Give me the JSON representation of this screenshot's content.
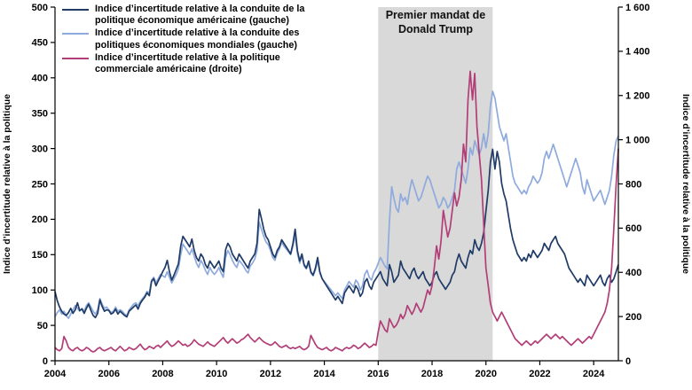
{
  "chart_data": {
    "type": "line",
    "title": "",
    "x_start_year": 2004,
    "points_per_year": 12,
    "x_ticks": [
      "2004",
      "2006",
      "2008",
      "2010",
      "2012",
      "2014",
      "2016",
      "2018",
      "2020",
      "2022",
      "2024"
    ],
    "left_axis": {
      "label": "Indice d’incertitude relative à la politique",
      "min": 0,
      "max": 500,
      "ticks": [
        "0",
        "50",
        "100",
        "150",
        "200",
        "250",
        "300",
        "350",
        "400",
        "450",
        "500"
      ]
    },
    "right_axis": {
      "label": "Indice d’incertitude relative à la politique",
      "min": 0,
      "max": 1600,
      "ticks": [
        "0",
        "200",
        "400",
        "600",
        "800",
        "1 000",
        "1 200",
        "1 400",
        "1 600"
      ]
    },
    "shaded_region": {
      "start_year": 2016.0,
      "end_year": 2020.25,
      "color": "#d9d9d9",
      "label": "Premier mandat de Donald Trump"
    },
    "series": [
      {
        "name": "Indice d’incertitude relative à la conduite de la politique économique américaine (gauche)",
        "axis": "left",
        "color": "#1f3b66",
        "values": [
          98,
          85,
          76,
          70,
          66,
          64,
          68,
          74,
          67,
          72,
          82,
          71,
          73,
          67,
          74,
          80,
          71,
          64,
          61,
          67,
          86,
          77,
          70,
          72,
          71,
          66,
          68,
          73,
          66,
          70,
          67,
          64,
          62,
          70,
          73,
          76,
          79,
          73,
          81,
          86,
          90,
          96,
          92,
          112,
          116,
          106,
          113,
          119,
          126,
          132,
          142,
          126,
          114,
          121,
          129,
          137,
          162,
          176,
          171,
          166,
          161,
          172,
          156,
          146,
          141,
          151,
          146,
          136,
          131,
          141,
          136,
          131,
          136,
          141,
          131,
          126,
          157,
          166,
          161,
          151,
          146,
          141,
          151,
          146,
          141,
          136,
          131,
          141,
          146,
          151,
          166,
          214,
          201,
          186,
          176,
          171,
          161,
          151,
          146,
          156,
          161,
          171,
          166,
          161,
          156,
          151,
          166,
          186,
          156,
          141,
          151,
          136,
          131,
          141,
          126,
          121,
          131,
          146,
          126,
          116,
          111,
          106,
          101,
          96,
          91,
          86,
          91,
          86,
          81,
          96,
          101,
          106,
          101,
          96,
          106,
          101,
          91,
          96,
          111,
          116,
          106,
          101,
          111,
          116,
          121,
          126,
          116,
          111,
          106,
          136,
          126,
          111,
          116,
          121,
          141,
          131,
          126,
          121,
          116,
          126,
          131,
          121,
          116,
          121,
          126,
          116,
          111,
          106,
          111,
          121,
          126,
          116,
          111,
          106,
          101,
          106,
          111,
          121,
          126,
          141,
          151,
          141,
          136,
          131,
          146,
          156,
          151,
          171,
          161,
          156,
          166,
          181,
          211,
          241,
          281,
          299,
          271,
          296,
          281,
          251,
          236,
          226,
          206,
          186,
          171,
          161,
          151,
          146,
          141,
          146,
          141,
          151,
          146,
          156,
          151,
          146,
          151,
          156,
          166,
          161,
          156,
          166,
          171,
          176,
          166,
          161,
          156,
          151,
          141,
          131,
          126,
          121,
          116,
          111,
          116,
          111,
          106,
          121,
          116,
          111,
          106,
          111,
          116,
          121,
          111,
          106,
          116,
          121,
          111,
          116,
          126,
          136
        ]
      },
      {
        "name": "Indice d’incertitude relative à la conduite des politiques économiques mondiales (gauche)",
        "axis": "left",
        "color": "#8faadc",
        "values": [
          62,
          68,
          72,
          66,
          70,
          64,
          60,
          66,
          72,
          78,
          74,
          70,
          74,
          70,
          78,
          82,
          76,
          70,
          66,
          72,
          88,
          80,
          74,
          76,
          72,
          68,
          70,
          76,
          70,
          72,
          70,
          66,
          64,
          72,
          76,
          80,
          82,
          78,
          84,
          88,
          92,
          98,
          96,
          114,
          118,
          110,
          116,
          122,
          120,
          118,
          126,
          118,
          110,
          116,
          122,
          130,
          150,
          165,
          160,
          155,
          150,
          158,
          148,
          138,
          132,
          142,
          136,
          128,
          122,
          132,
          126,
          122,
          126,
          132,
          124,
          118,
          146,
          156,
          150,
          142,
          136,
          132,
          142,
          138,
          134,
          128,
          124,
          134,
          138,
          144,
          156,
          196,
          186,
          176,
          168,
          164,
          156,
          146,
          142,
          152,
          158,
          168,
          162,
          158,
          154,
          150,
          162,
          178,
          152,
          138,
          148,
          134,
          130,
          138,
          124,
          120,
          128,
          142,
          124,
          116,
          112,
          108,
          104,
          100,
          96,
          92,
          96,
          92,
          88,
          100,
          106,
          112,
          108,
          104,
          114,
          110,
          100,
          106,
          122,
          128,
          118,
          114,
          124,
          130,
          138,
          146,
          140,
          134,
          130,
          198,
          246,
          230,
          216,
          210,
          236,
          226,
          231,
          221,
          241,
          256,
          246,
          236,
          226,
          231,
          241,
          251,
          261,
          256,
          246,
          236,
          226,
          216,
          221,
          231,
          226,
          216,
          221,
          231,
          241,
          271,
          281,
          271,
          261,
          251,
          271,
          301,
          291,
          311,
          301,
          291,
          301,
          321,
          301,
          321,
          361,
          381,
          371,
          351,
          331,
          321,
          311,
          321,
          301,
          281,
          261,
          251,
          246,
          241,
          236,
          241,
          236,
          246,
          251,
          261,
          256,
          251,
          256,
          266,
          286,
          296,
          286,
          296,
          306,
          296,
          286,
          276,
          266,
          256,
          246,
          256,
          266,
          276,
          286,
          276,
          266,
          246,
          236,
          256,
          246,
          236,
          226,
          231,
          236,
          241,
          231,
          221,
          231,
          241,
          261,
          291,
          311,
          318
        ]
      },
      {
        "name": "Indice d’incertitude relative à la politique commerciale américaine (droite)",
        "axis": "right",
        "color": "#b23e77",
        "values": [
          60,
          50,
          45,
          55,
          110,
          90,
          60,
          50,
          45,
          55,
          60,
          50,
          45,
          50,
          60,
          55,
          45,
          40,
          45,
          55,
          60,
          50,
          45,
          50,
          55,
          60,
          50,
          45,
          55,
          65,
          55,
          45,
          50,
          60,
          55,
          50,
          55,
          65,
          75,
          60,
          50,
          55,
          65,
          60,
          55,
          65,
          70,
          60,
          70,
          80,
          90,
          75,
          65,
          70,
          80,
          90,
          80,
          70,
          75,
          65,
          70,
          80,
          95,
          85,
          75,
          70,
          65,
          75,
          85,
          75,
          70,
          65,
          75,
          85,
          95,
          105,
          90,
          80,
          90,
          100,
          90,
          80,
          85,
          95,
          100,
          110,
          120,
          105,
          95,
          85,
          95,
          105,
          95,
          85,
          80,
          75,
          70,
          75,
          85,
          75,
          65,
          60,
          65,
          70,
          60,
          55,
          60,
          55,
          60,
          65,
          55,
          50,
          55,
          65,
          115,
          95,
          75,
          60,
          55,
          50,
          55,
          60,
          50,
          45,
          50,
          60,
          55,
          50,
          45,
          55,
          60,
          55,
          60,
          70,
          65,
          55,
          60,
          70,
          80,
          70,
          60,
          65,
          75,
          70,
          130,
          180,
          160,
          140,
          130,
          190,
          170,
          150,
          160,
          180,
          210,
          190,
          210,
          250,
          230,
          210,
          230,
          260,
          240,
          220,
          240,
          280,
          320,
          300,
          340,
          420,
          520,
          460,
          540,
          680,
          620,
          560,
          600,
          680,
          760,
          700,
          740,
          820,
          980,
          900,
          1180,
          1310,
          1180,
          1300,
          1060,
          940,
          820,
          620,
          420,
          340,
          260,
          220,
          200,
          180,
          200,
          220,
          200,
          180,
          160,
          140,
          120,
          100,
          90,
          80,
          70,
          80,
          90,
          80,
          70,
          80,
          90,
          80,
          90,
          100,
          110,
          120,
          110,
          100,
          110,
          120,
          110,
          100,
          110,
          100,
          90,
          80,
          70,
          80,
          90,
          100,
          90,
          80,
          90,
          100,
          110,
          100,
          120,
          140,
          160,
          180,
          200,
          220,
          260,
          320,
          420,
          600,
          800,
          960
        ]
      }
    ]
  }
}
